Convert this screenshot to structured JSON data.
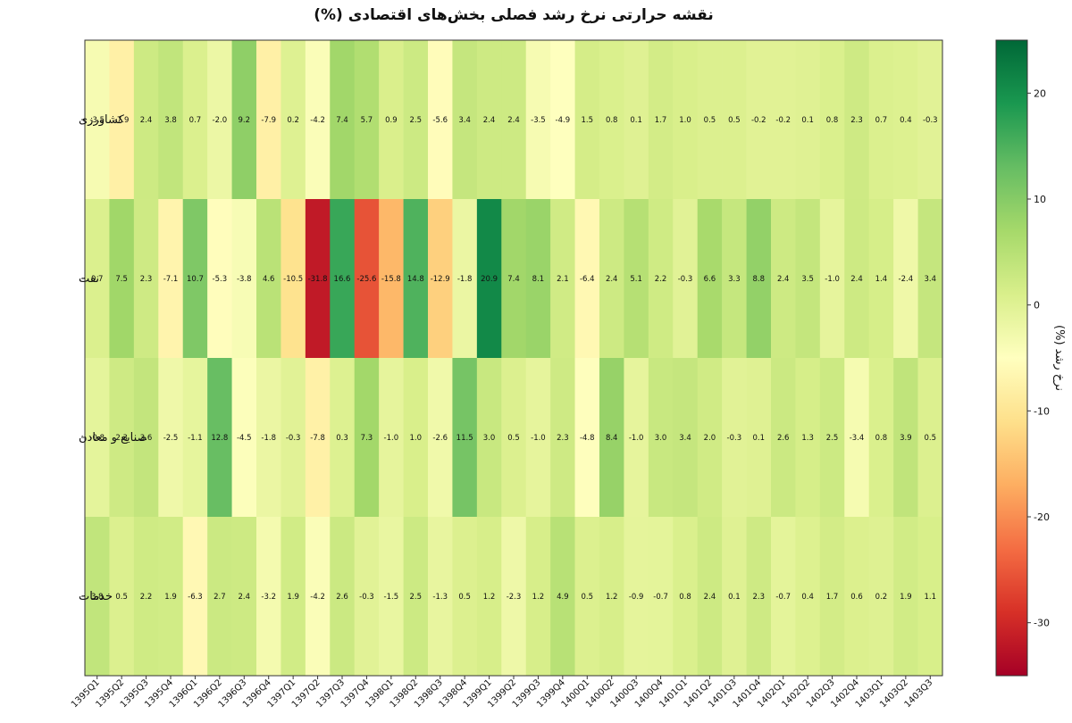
{
  "chart_data": {
    "type": "heatmap",
    "title": "نقشه حرارتی نرخ رشد فصلی بخش‌های اقتصادی (%)",
    "colorbar_label": "نرخ رشد (%)",
    "colormap": "RdYlGn",
    "vmin": -35,
    "vmax": 25,
    "colorbar_ticks": [
      20,
      10,
      0,
      -10,
      -20,
      -30
    ],
    "x": [
      "1395Q1",
      "1395Q2",
      "1395Q3",
      "1395Q4",
      "1396Q1",
      "1396Q2",
      "1396Q3",
      "1396Q4",
      "1397Q1",
      "1397Q2",
      "1397Q3",
      "1397Q4",
      "1398Q1",
      "1398Q2",
      "1398Q3",
      "1398Q4",
      "1399Q1",
      "1399Q2",
      "1399Q3",
      "1399Q4",
      "1400Q1",
      "1400Q2",
      "1400Q3",
      "1400Q4",
      "1401Q1",
      "1401Q2",
      "1401Q3",
      "1401Q4",
      "1402Q1",
      "1402Q2",
      "1402Q3",
      "1402Q4",
      "1403Q1",
      "1403Q2",
      "1403Q3"
    ],
    "y": [
      "کشاورزی",
      "نفت",
      "صنایع و معادن",
      "خدمات"
    ],
    "values": [
      [
        -3.5,
        -7.9,
        2.4,
        3.8,
        0.7,
        -2.0,
        9.2,
        -7.9,
        0.2,
        -4.2,
        7.4,
        5.7,
        0.9,
        2.5,
        -5.6,
        3.4,
        2.4,
        2.4,
        -3.5,
        -4.9,
        1.5,
        0.8,
        0.1,
        1.7,
        1.0,
        0.5,
        0.5,
        -0.2,
        -0.2,
        0.1,
        0.8,
        2.3,
        0.7,
        0.4,
        -0.3
      ],
      [
        0.7,
        7.5,
        2.3,
        -7.1,
        10.7,
        -5.3,
        -3.8,
        4.6,
        -10.5,
        -31.8,
        16.6,
        -25.6,
        -15.8,
        14.8,
        -12.9,
        -1.8,
        20.9,
        7.4,
        8.1,
        2.1,
        -6.4,
        2.4,
        5.1,
        2.2,
        -0.3,
        6.6,
        3.3,
        8.8,
        2.4,
        3.5,
        -1.0,
        2.4,
        1.4,
        -2.4,
        3.4
      ],
      [
        -0.8,
        2.3,
        3.6,
        -2.5,
        -1.1,
        12.8,
        -4.5,
        -1.8,
        -0.3,
        -7.8,
        0.3,
        7.3,
        -1.0,
        1.0,
        -2.6,
        11.5,
        3.0,
        0.5,
        -1.0,
        2.3,
        -4.8,
        8.4,
        -1.0,
        3.0,
        3.4,
        2.0,
        -0.3,
        0.1,
        2.6,
        1.3,
        2.5,
        -3.4,
        0.8,
        3.9,
        0.5
      ],
      [
        3.8,
        0.5,
        2.2,
        1.9,
        -6.3,
        2.7,
        2.4,
        -3.2,
        1.9,
        -4.2,
        2.6,
        -0.3,
        -1.5,
        2.5,
        -1.3,
        0.5,
        1.2,
        -2.3,
        1.2,
        4.9,
        0.5,
        1.2,
        -0.9,
        -0.7,
        0.8,
        2.4,
        0.1,
        2.3,
        -0.7,
        0.4,
        1.7,
        0.6,
        0.2,
        1.9,
        1.1
      ]
    ],
    "show_values": true,
    "grid": false
  }
}
